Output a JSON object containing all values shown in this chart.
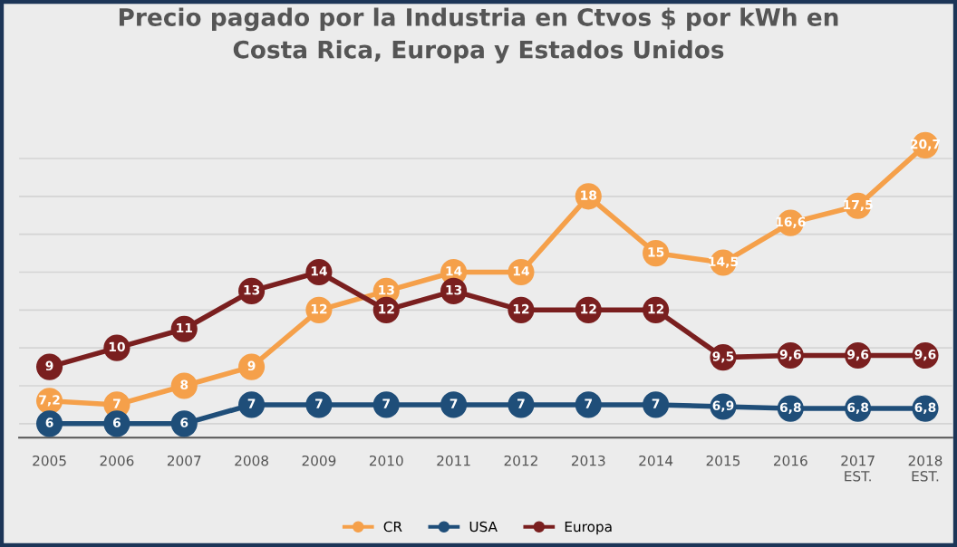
{
  "chart_data": {
    "type": "line",
    "title": "Precio pagado por la Industria en Ctvos $ por kWh en\nCosta Rica, Europa y Estados Unidos",
    "categories": [
      "2005",
      "2006",
      "2007",
      "2008",
      "2009",
      "2010",
      "2011",
      "2012",
      "2013",
      "2014",
      "2015",
      "2016",
      "2017\nEST.",
      "2018\nEST."
    ],
    "series": [
      {
        "name": "CR",
        "color": "#f5a04a",
        "values": [
          7.2,
          7,
          8,
          9,
          12,
          13,
          14,
          14,
          18,
          15,
          14.5,
          16.6,
          17.5,
          20.7
        ],
        "value_labels": [
          "7,2",
          "7",
          "8",
          "9",
          "12",
          "13",
          "14",
          "14",
          "18",
          "15",
          "14,5",
          "16,6",
          "17,5",
          "20,7"
        ]
      },
      {
        "name": "USA",
        "color": "#1f4e79",
        "values": [
          6,
          6,
          6,
          7,
          7,
          7,
          7,
          7,
          7,
          7,
          6.9,
          6.8,
          6.8,
          6.8
        ],
        "value_labels": [
          "6",
          "6",
          "6",
          "7",
          "7",
          "7",
          "7",
          "7",
          "7",
          "7",
          "6,9",
          "6,8",
          "6,8",
          "6,8"
        ]
      },
      {
        "name": "Europa",
        "color": "#7a1f1f",
        "values": [
          9,
          10,
          11,
          13,
          14,
          12,
          13,
          12,
          12,
          12,
          9.5,
          9.6,
          9.6,
          9.6
        ],
        "value_labels": [
          "9",
          "10",
          "11",
          "13",
          "14",
          "12",
          "13",
          "12",
          "12",
          "12",
          "9,5",
          "9,6",
          "9,6",
          "9,6"
        ]
      }
    ],
    "tick_labels": "x",
    "grid": "y",
    "legend": "bottom",
    "marker": "circle",
    "line_style": "solid"
  }
}
